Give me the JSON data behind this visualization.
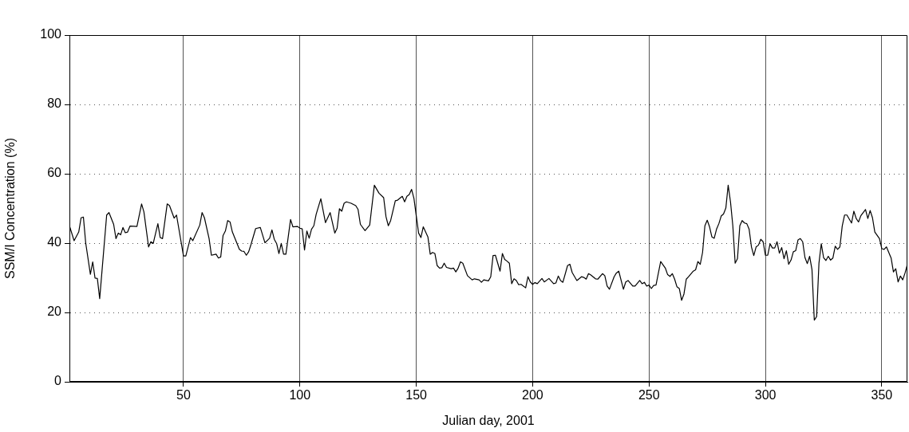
{
  "chart_data": {
    "type": "line",
    "xlabel": "Julian day, 2001",
    "ylabel": "SSM/I Concentration (%)",
    "color": "#000000",
    "grid": true,
    "xlim": [
      1,
      361
    ],
    "ylim": [
      0,
      100
    ],
    "xticks": [
      50,
      100,
      150,
      200,
      250,
      300,
      350
    ],
    "yticks": [
      0,
      20,
      40,
      60,
      80,
      100
    ],
    "x": [
      1,
      3,
      5,
      6,
      7,
      8,
      10,
      11,
      12,
      13,
      14,
      17,
      18,
      20,
      21,
      22,
      23,
      24,
      25,
      26,
      27,
      30,
      32,
      33,
      35,
      36,
      37,
      39,
      40,
      41,
      43,
      44,
      46,
      47,
      50,
      51,
      53,
      54,
      57,
      58,
      59,
      61,
      62,
      64,
      65,
      66,
      67,
      68,
      69,
      70,
      71,
      74,
      75,
      76,
      77,
      78,
      79,
      81,
      83,
      85,
      87,
      88,
      89,
      90,
      91,
      92,
      93,
      94,
      96,
      97,
      99,
      100,
      101,
      102,
      103,
      104,
      105,
      106,
      107,
      109,
      111,
      113,
      115,
      116,
      117,
      118,
      119,
      120,
      122,
      124,
      125,
      126,
      128,
      130,
      132,
      134,
      136,
      137,
      138,
      139,
      141,
      142,
      144,
      145,
      146,
      147,
      148,
      149,
      150,
      151,
      152,
      153,
      155,
      156,
      157,
      158,
      159,
      160,
      161,
      162,
      163,
      165,
      166,
      167,
      168,
      169,
      170,
      172,
      174,
      175,
      177,
      178,
      179,
      181,
      182,
      183,
      184,
      186,
      187,
      188,
      189,
      190,
      191,
      192,
      193,
      194,
      195,
      197,
      198,
      199,
      200,
      201,
      202,
      204,
      205,
      207,
      209,
      210,
      211,
      212,
      213,
      215,
      216,
      217,
      219,
      221,
      222,
      223,
      224,
      225,
      227,
      228,
      230,
      231,
      232,
      233,
      235,
      236,
      237,
      239,
      240,
      241,
      243,
      244,
      246,
      247,
      248,
      249,
      250,
      251,
      252,
      253,
      255,
      257,
      258,
      259,
      260,
      261,
      262,
      263,
      264,
      265,
      266,
      267,
      269,
      270,
      271,
      272,
      273,
      274,
      275,
      276,
      277,
      278,
      279,
      280,
      281,
      282,
      283,
      284,
      285,
      286,
      287,
      288,
      289,
      290,
      291,
      292,
      293,
      294,
      295,
      296,
      297,
      298,
      299,
      300,
      301,
      302,
      303,
      304,
      305,
      306,
      307,
      308,
      309,
      310,
      311,
      312,
      313,
      314,
      315,
      316,
      317,
      318,
      319,
      320,
      321,
      322,
      323,
      324,
      325,
      326,
      327,
      328,
      329,
      330,
      331,
      332,
      333,
      334,
      335,
      337,
      338,
      339,
      340,
      341,
      343,
      344,
      345,
      346,
      347,
      349,
      350,
      351,
      352,
      354,
      355,
      356,
      357,
      358,
      359,
      360,
      361
    ],
    "values": [
      45.0,
      40.7,
      43.2,
      47.3,
      47.5,
      40,
      31,
      34.6,
      29.9,
      29.8,
      24.0,
      48.1,
      48.8,
      45.4,
      41.3,
      42.9,
      42.4,
      44.5,
      43,
      43.2,
      44.9,
      44.8,
      51.3,
      49,
      38.9,
      40.4,
      39.9,
      45.6,
      41.6,
      41.3,
      51.3,
      50.8,
      47.2,
      48.1,
      36.3,
      36.3,
      41.6,
      40.7,
      45.2,
      48.8,
      47.3,
      41.3,
      36.5,
      36.8,
      35.7,
      36,
      42.2,
      43.5,
      46.5,
      46.1,
      43.2,
      38.2,
      37.7,
      37.6,
      36.5,
      37.5,
      39.6,
      44.2,
      44.5,
      40.1,
      41.4,
      43.8,
      41.1,
      39.9,
      37,
      39.9,
      36.8,
      36.8,
      46.8,
      44.7,
      44.8,
      44.3,
      44.1,
      38,
      43.5,
      41.4,
      44,
      45,
      48.3,
      52.8,
      45.9,
      48.8,
      42.9,
      44.3,
      49.9,
      49.2,
      51.5,
      51.9,
      51.5,
      50.8,
      49.7,
      45.4,
      43.6,
      45.2,
      56.7,
      54.4,
      53.1,
      47.6,
      45,
      46.5,
      52.2,
      52.4,
      53.5,
      51.9,
      53.5,
      54,
      55.5,
      52.9,
      47.9,
      42.9,
      41.6,
      44.7,
      41.8,
      36.8,
      37.3,
      37,
      33.5,
      32.8,
      32.9,
      34.2,
      33,
      32.6,
      32.8,
      31.7,
      32.8,
      34.6,
      34.2,
      30.6,
      29.4,
      29.7,
      29.4,
      28.7,
      29.4,
      29.1,
      30.3,
      36.4,
      36.5,
      31.9,
      37,
      35.3,
      34.8,
      34.2,
      28.3,
      29.7,
      29.2,
      28,
      28.1,
      27.1,
      30.3,
      28.8,
      28.1,
      28.6,
      28.3,
      29.8,
      28.8,
      29.8,
      28.3,
      28.5,
      30.5,
      29.2,
      28.7,
      33.5,
      33.9,
      31.5,
      29.2,
      30.3,
      30.1,
      29.6,
      31.2,
      30.8,
      29.7,
      29.6,
      31.2,
      30.6,
      27.6,
      26.7,
      30.3,
      31.4,
      31.9,
      26.7,
      28.8,
      29.2,
      27.6,
      27.6,
      29.2,
      28.3,
      28.7,
      27.6,
      27.9,
      26.9,
      27.8,
      27.9,
      34.7,
      32.8,
      30.9,
      30.4,
      31.2,
      29.6,
      27.4,
      26.9,
      23.5,
      25.3,
      29.6,
      30.3,
      31.9,
      32.3,
      34.7,
      33.9,
      37.3,
      45,
      46.6,
      44.7,
      41.8,
      41.4,
      44,
      45.6,
      47.8,
      48.4,
      50.1,
      56.7,
      51.9,
      45,
      34.2,
      35.5,
      45,
      46.5,
      45.8,
      45.6,
      44,
      38.9,
      36.4,
      38.9,
      39.4,
      41.1,
      40.4,
      36.5,
      36.5,
      39.8,
      38.6,
      38.6,
      40.4,
      37.1,
      38.7,
      35.5,
      37.8,
      33.9,
      35.1,
      37.5,
      37.8,
      40.9,
      41.3,
      40.4,
      35.8,
      34.1,
      36.2,
      32.4,
      17.8,
      18.8,
      34.2,
      39.8,
      35.8,
      35,
      36.2,
      35.1,
      35.7,
      39.1,
      38.2,
      38.9,
      44.9,
      48.1,
      48.1,
      45.8,
      49.2,
      47.1,
      46.1,
      47.9,
      49.7,
      47.1,
      49.4,
      47.3,
      43.2,
      41.3,
      38.4,
      38.2,
      38.9,
      35.7,
      31.7,
      32.6,
      28.8,
      30.5,
      29.4,
      31.4,
      33.9
    ]
  }
}
